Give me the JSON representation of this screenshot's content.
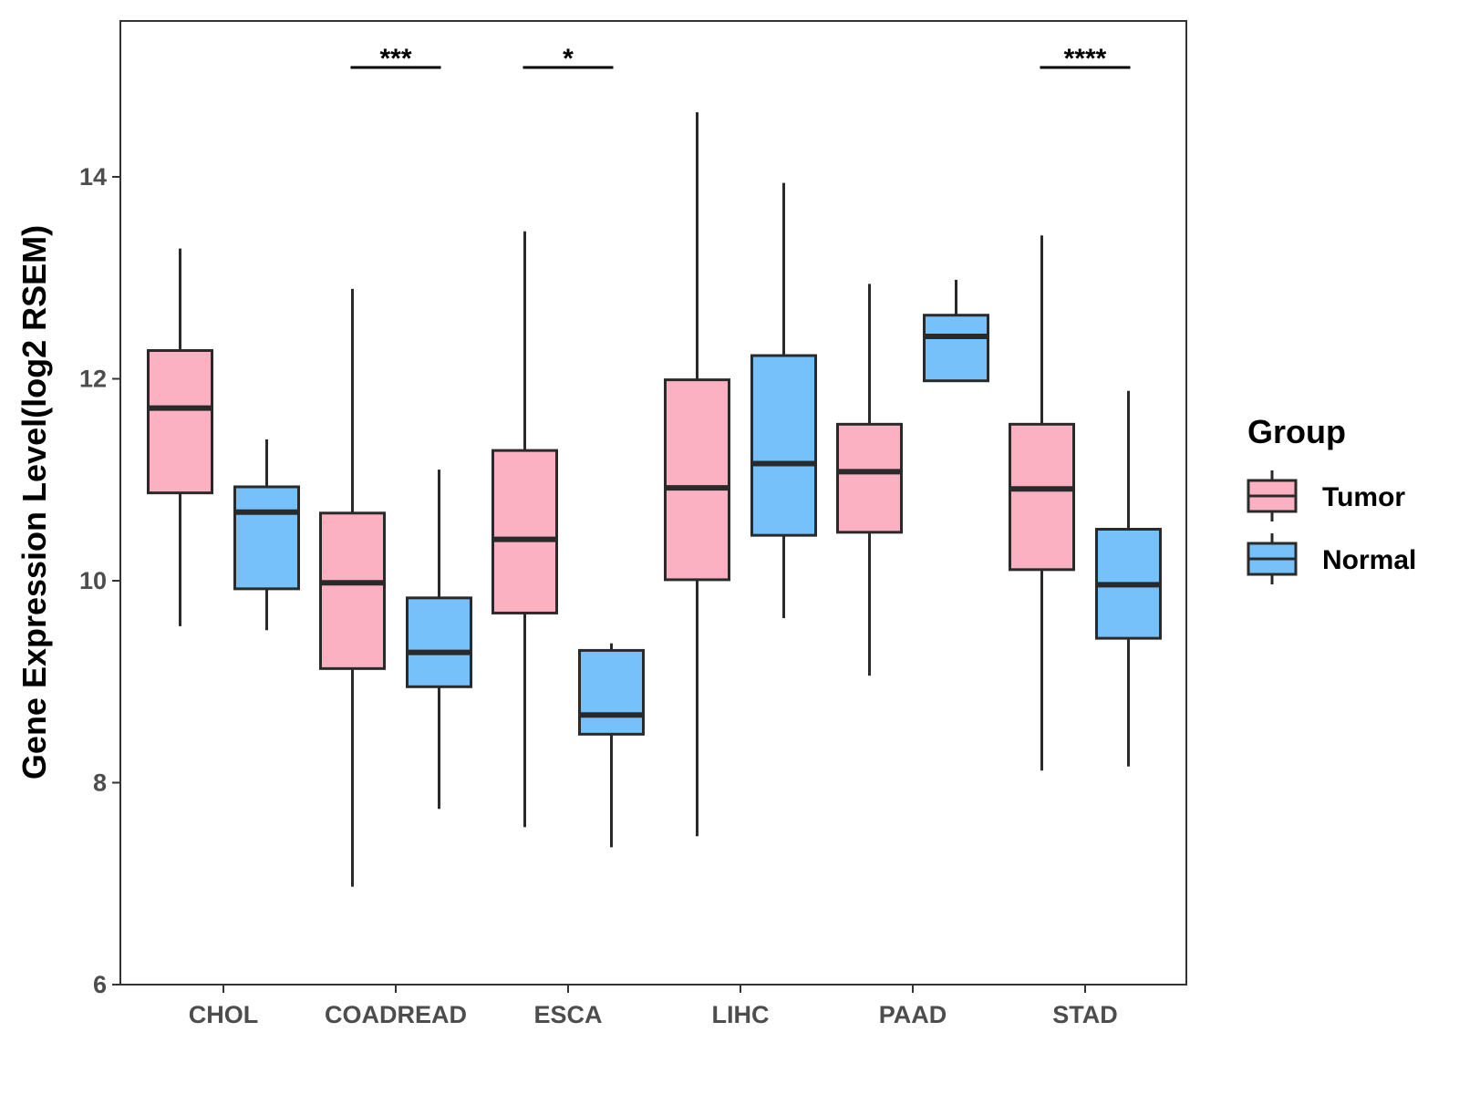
{
  "chart_data": {
    "type": "boxplot",
    "title": "",
    "xlabel": "",
    "ylabel": "Gene Expression Level(log2 RSEM)",
    "ylim": [
      6,
      15.6
    ],
    "yticks": [
      6,
      8,
      10,
      12,
      14
    ],
    "grid": false,
    "categories": [
      "CHOL",
      "COADREAD",
      "ESCA",
      "LIHC",
      "PAAD",
      "STAD"
    ],
    "legend": {
      "title": "Group",
      "position": "right",
      "entries": [
        {
          "name": "Tumor",
          "color": "#FBB1C2"
        },
        {
          "name": "Normal",
          "color": "#76C1FA"
        }
      ]
    },
    "series": [
      {
        "name": "Tumor",
        "color": "#FBB1C2",
        "boxes": [
          {
            "min": 9.55,
            "q1": 10.87,
            "median": 11.71,
            "q3": 12.28,
            "max": 13.29
          },
          {
            "min": 6.97,
            "q1": 9.13,
            "median": 9.98,
            "q3": 10.67,
            "max": 12.89
          },
          {
            "min": 7.56,
            "q1": 9.68,
            "median": 10.41,
            "q3": 11.29,
            "max": 13.46
          },
          {
            "min": 7.47,
            "q1": 10.01,
            "median": 10.92,
            "q3": 11.99,
            "max": 14.64
          },
          {
            "min": 9.06,
            "q1": 10.48,
            "median": 11.08,
            "q3": 11.55,
            "max": 12.94
          },
          {
            "min": 8.12,
            "q1": 10.11,
            "median": 10.91,
            "q3": 11.55,
            "max": 13.42
          }
        ]
      },
      {
        "name": "Normal",
        "color": "#76C1FA",
        "boxes": [
          {
            "min": 9.51,
            "q1": 9.92,
            "median": 10.68,
            "q3": 10.93,
            "max": 11.4
          },
          {
            "min": 7.74,
            "q1": 8.95,
            "median": 9.29,
            "q3": 9.83,
            "max": 11.1
          },
          {
            "min": 7.36,
            "q1": 8.48,
            "median": 8.67,
            "q3": 9.31,
            "max": 9.38
          },
          {
            "min": 9.63,
            "q1": 10.45,
            "median": 11.16,
            "q3": 12.23,
            "max": 13.94
          },
          {
            "min": 11.98,
            "q1": 11.98,
            "median": 12.42,
            "q3": 12.63,
            "max": 12.98
          },
          {
            "min": 8.16,
            "q1": 9.43,
            "median": 9.96,
            "q3": 10.51,
            "max": 11.88
          }
        ]
      }
    ],
    "significance": [
      {
        "category": "COADREAD",
        "label": "***"
      },
      {
        "category": "ESCA",
        "label": "*"
      },
      {
        "category": "STAD",
        "label": "****"
      }
    ]
  }
}
